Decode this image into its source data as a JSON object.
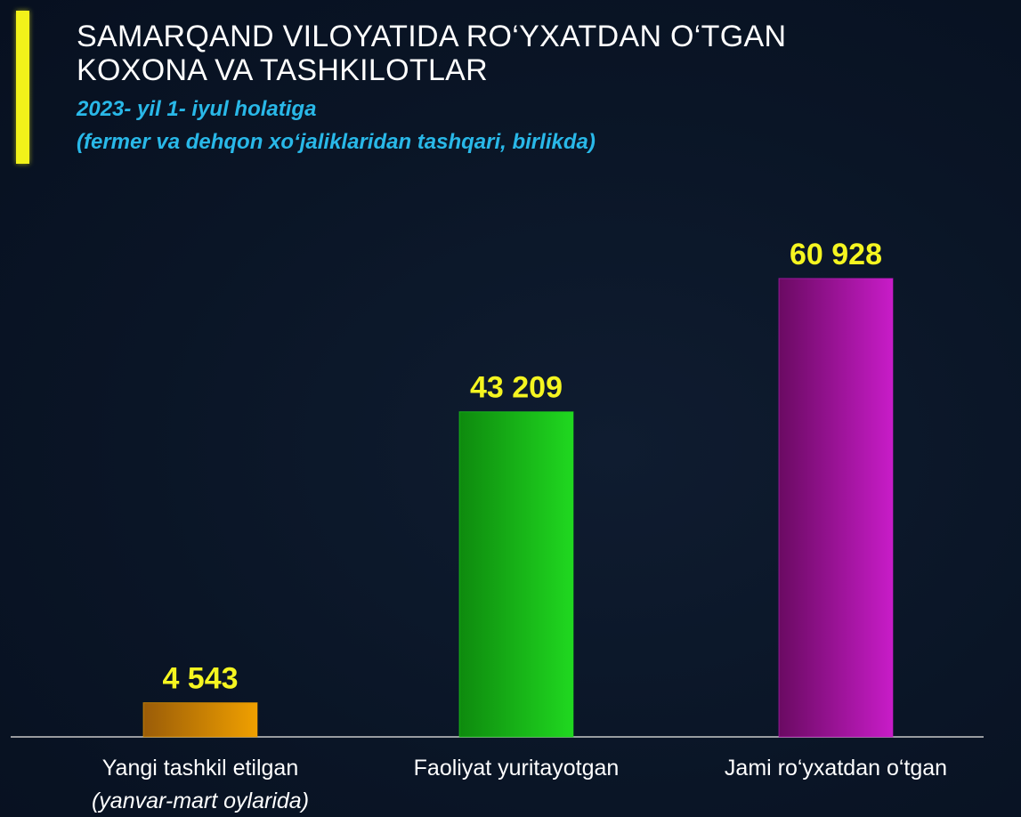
{
  "header": {
    "title_line1": "SAMARQAND VILOYATIDA RO‘YXATDAN O‘TGAN",
    "title_line2": "KOXONA VA TASHKILOTLAR",
    "subtitle_line1": "2023- yil 1- iyul holatiga",
    "subtitle_line2": "(fermer va dehqon xo‘jaliklaridan tashqari, birlikda)"
  },
  "colors": {
    "accent_bar": "#f2f21a",
    "title": "#ffffff",
    "subtitle": "#29b8e8",
    "value_labels": "#f5f520"
  },
  "chart_data": {
    "type": "bar",
    "title": "SAMARQAND VILOYATIDA RO‘YXATDAN O‘TGAN KOXONA VA TASHKILOTLAR",
    "subtitle": "2023- yil 1- iyul holatiga (fermer va dehqon xo‘jaliklaridan tashqari, birlikda)",
    "categories": [
      "Yangi tashkil etilgan",
      "Faoliyat yuritayotgan",
      "Jami ro‘yxatdan o‘tgan"
    ],
    "category_sublabels": [
      "(yanvar-mart oylarida)",
      "",
      ""
    ],
    "values": [
      4543,
      43209,
      60928
    ],
    "value_labels": [
      "4 543",
      "43 209",
      "60 928"
    ],
    "bar_colors": [
      [
        "#9a5c08",
        "#f0a000"
      ],
      [
        "#0e8a0e",
        "#20d820"
      ],
      [
        "#6a0a62",
        "#c81cc8"
      ]
    ],
    "xlabel": "",
    "ylabel": "",
    "ylim": [
      0,
      66000
    ],
    "grid": false,
    "legend": "none"
  }
}
